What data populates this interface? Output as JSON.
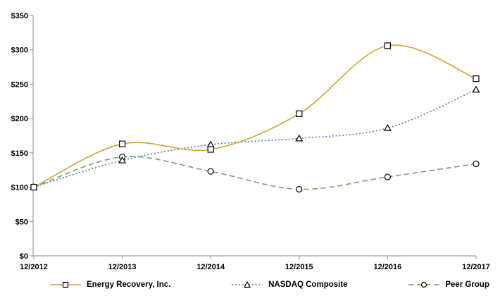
{
  "chart_data": {
    "type": "line",
    "title": "",
    "xlabel": "",
    "ylabel": "",
    "categories": [
      "12/2012",
      "12/2013",
      "12/2014",
      "12/2015",
      "12/2016",
      "12/2017"
    ],
    "series": [
      {
        "name": "Energy Recovery, Inc.",
        "marker": "square",
        "line_style": "solid",
        "color": "#D1A23B",
        "values": [
          100,
          163,
          155,
          207,
          306,
          258
        ]
      },
      {
        "name": "NASDAQ Composite",
        "marker": "triangle",
        "line_style": "dotted",
        "color": "#4A7EBB",
        "values": [
          100,
          139,
          162,
          171,
          186,
          242
        ]
      },
      {
        "name": "Peer Group",
        "marker": "circle",
        "line_style": "dashed",
        "color": "#7D9D66",
        "values": [
          100,
          144,
          123,
          97,
          115,
          134
        ]
      }
    ],
    "y_tick_labels": [
      "$0",
      "$50",
      "$100",
      "$150",
      "$200",
      "$250",
      "$300",
      "$350"
    ],
    "y_tick_values": [
      0,
      50,
      100,
      150,
      200,
      250,
      300,
      350
    ],
    "ylim": [
      0,
      350
    ],
    "grid": false,
    "legend_position": "bottom",
    "axis_color": "#8C8C8C",
    "marker_outline_color": "#000000",
    "marker_fill_color": "#FFFFFF",
    "background_color": "#FFFFFF",
    "text_color": "#000000"
  }
}
